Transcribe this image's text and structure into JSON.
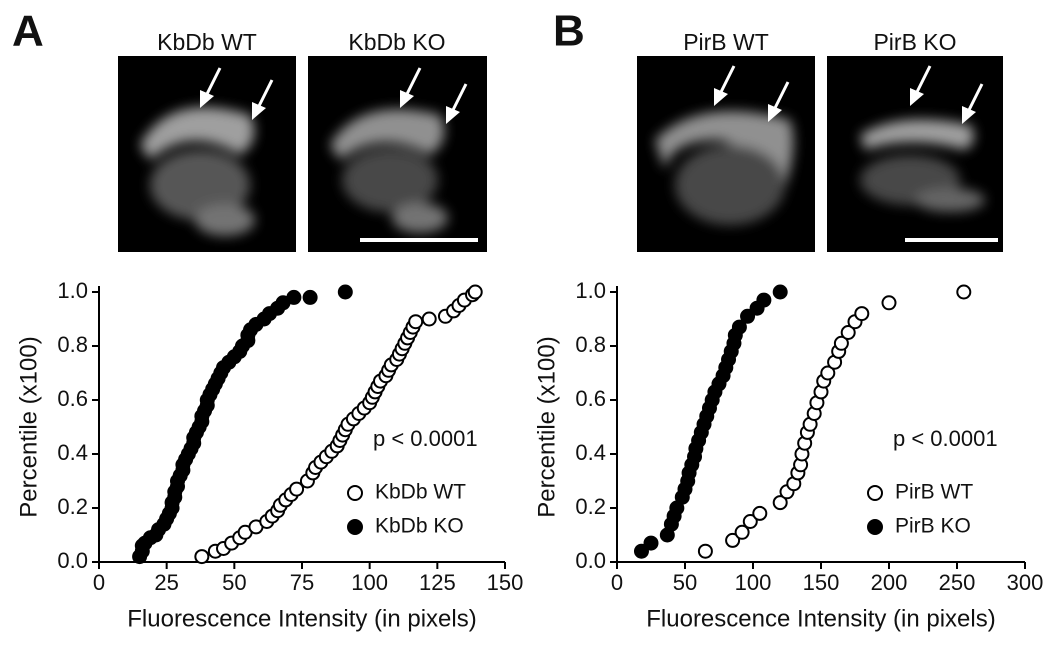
{
  "panels": [
    {
      "letter": "A",
      "images": [
        "KbDb WT",
        "KbDb KO"
      ]
    },
    {
      "letter": "B",
      "images": [
        "PirB WT",
        "PirB KO"
      ]
    }
  ],
  "chart_data": [
    {
      "type": "scatter",
      "xlabel": "Fluorescence Intensity (in pixels)",
      "ylabel": "Percentile (x100)",
      "annotation": "p < 0.0001",
      "legend": "lower right",
      "xlim": [
        0,
        150
      ],
      "xticks": [
        0,
        25,
        50,
        75,
        100,
        125,
        150
      ],
      "ylim": [
        0,
        1
      ],
      "yticks": [
        {
          "value": 0,
          "label": "0.0"
        },
        0.2,
        0.4,
        0.6,
        0.8,
        {
          "value": 1,
          "label": "1.0"
        }
      ],
      "series": [
        {
          "name": "KbDb WT",
          "color": "#000000",
          "fill": "#ffffff",
          "x": [
            38,
            43,
            46,
            49,
            52,
            54,
            58,
            62,
            64,
            66,
            67,
            69,
            71,
            73,
            77,
            79,
            80,
            82,
            84,
            86,
            88,
            89,
            90,
            91,
            92,
            94,
            96,
            98,
            100,
            101,
            102,
            103,
            104,
            106,
            107,
            108,
            110,
            111,
            112,
            113,
            114,
            115,
            116,
            117,
            122,
            128,
            131,
            133,
            135,
            138,
            139
          ],
          "values": [
            0.02,
            0.04,
            0.05,
            0.07,
            0.09,
            0.11,
            0.13,
            0.15,
            0.17,
            0.19,
            0.21,
            0.23,
            0.25,
            0.27,
            0.3,
            0.33,
            0.35,
            0.37,
            0.39,
            0.41,
            0.43,
            0.45,
            0.47,
            0.49,
            0.51,
            0.53,
            0.55,
            0.57,
            0.59,
            0.61,
            0.63,
            0.65,
            0.67,
            0.69,
            0.71,
            0.73,
            0.75,
            0.77,
            0.79,
            0.81,
            0.83,
            0.85,
            0.87,
            0.89,
            0.9,
            0.91,
            0.93,
            0.95,
            0.97,
            0.99,
            1.0
          ]
        },
        {
          "name": "KbDb KO",
          "color": "#000000",
          "fill": "#000000",
          "x": [
            15,
            16,
            16,
            17,
            19,
            21,
            22,
            24,
            25,
            26,
            27,
            27,
            28,
            28,
            29,
            29,
            30,
            31,
            31,
            32,
            33,
            34,
            35,
            35,
            36,
            37,
            38,
            38,
            39,
            40,
            40,
            41,
            42,
            43,
            44,
            45,
            46,
            48,
            50,
            52,
            53,
            55,
            55,
            56,
            58,
            61,
            63,
            66,
            68,
            72,
            78,
            91
          ],
          "values": [
            0.02,
            0.04,
            0.06,
            0.07,
            0.09,
            0.1,
            0.12,
            0.14,
            0.16,
            0.18,
            0.2,
            0.22,
            0.24,
            0.26,
            0.28,
            0.3,
            0.32,
            0.34,
            0.36,
            0.38,
            0.4,
            0.42,
            0.44,
            0.46,
            0.48,
            0.5,
            0.52,
            0.54,
            0.56,
            0.58,
            0.6,
            0.62,
            0.64,
            0.66,
            0.68,
            0.7,
            0.72,
            0.74,
            0.76,
            0.78,
            0.8,
            0.82,
            0.84,
            0.86,
            0.88,
            0.9,
            0.92,
            0.94,
            0.96,
            0.98,
            0.98,
            1.0
          ]
        }
      ]
    },
    {
      "type": "scatter",
      "xlabel": "Fluorescence Intensity (in pixels)",
      "ylabel": "Percentile (x100)",
      "annotation": "p < 0.0001",
      "legend": "lower right",
      "xlim": [
        0,
        300
      ],
      "xticks": [
        0,
        50,
        100,
        150,
        200,
        250,
        300
      ],
      "ylim": [
        0,
        1
      ],
      "yticks": [
        {
          "value": 0,
          "label": "0.0"
        },
        0.2,
        0.4,
        0.6,
        0.8,
        {
          "value": 1,
          "label": "1.0"
        }
      ],
      "series": [
        {
          "name": "PirB WT",
          "color": "#000000",
          "fill": "#ffffff",
          "x": [
            65,
            85,
            92,
            98,
            105,
            120,
            125,
            130,
            133,
            135,
            136,
            138,
            140,
            142,
            145,
            147,
            150,
            152,
            155,
            160,
            163,
            165,
            170,
            175,
            180,
            200,
            255
          ],
          "values": [
            0.04,
            0.08,
            0.11,
            0.15,
            0.18,
            0.22,
            0.26,
            0.29,
            0.33,
            0.36,
            0.4,
            0.44,
            0.48,
            0.51,
            0.55,
            0.59,
            0.63,
            0.67,
            0.7,
            0.74,
            0.78,
            0.81,
            0.85,
            0.89,
            0.92,
            0.96,
            1.0
          ]
        },
        {
          "name": "PirB KO",
          "color": "#000000",
          "fill": "#000000",
          "x": [
            18,
            25,
            37,
            40,
            42,
            44,
            48,
            50,
            52,
            53,
            55,
            57,
            58,
            60,
            62,
            64,
            66,
            68,
            70,
            72,
            75,
            78,
            80,
            82,
            84,
            86,
            87,
            90,
            96,
            103,
            108,
            120
          ],
          "values": [
            0.04,
            0.07,
            0.1,
            0.14,
            0.17,
            0.2,
            0.24,
            0.27,
            0.3,
            0.33,
            0.36,
            0.39,
            0.42,
            0.45,
            0.48,
            0.51,
            0.54,
            0.57,
            0.6,
            0.63,
            0.66,
            0.69,
            0.72,
            0.75,
            0.78,
            0.81,
            0.84,
            0.87,
            0.91,
            0.94,
            0.97,
            1.0
          ]
        }
      ]
    }
  ]
}
